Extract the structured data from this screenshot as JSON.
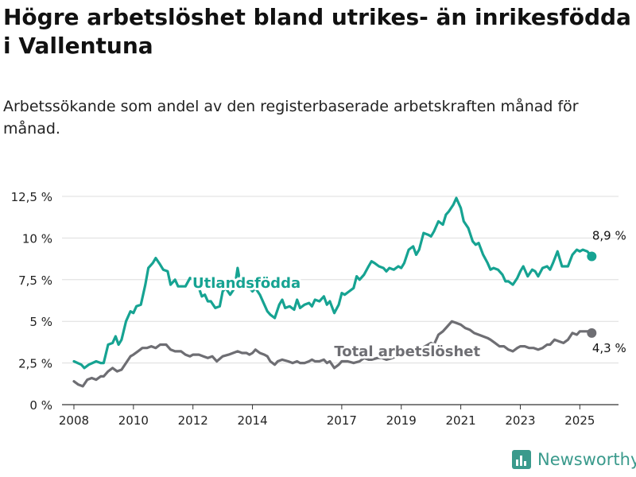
{
  "title": "Högre arbetslöshet bland utrikes- än inrikesfödda i Vallentuna",
  "subtitle": "Arbetssökande som andel av den registerbaserade arbetskraften månad för månad.",
  "brand": {
    "name": "Newsworthy",
    "icon": "bar-chart-logo-icon"
  },
  "chart_data": {
    "type": "line",
    "ylim": [
      0,
      12.5
    ],
    "xlim": [
      2007.6,
      2026.3
    ],
    "y_ticks": [
      {
        "value": 0,
        "label": "0 %"
      },
      {
        "value": 2.5,
        "label": "2,5 %"
      },
      {
        "value": 5,
        "label": "5 %"
      },
      {
        "value": 7.5,
        "label": "7,5 %"
      },
      {
        "value": 10,
        "label": "10 %"
      },
      {
        "value": 12.5,
        "label": "12,5 %"
      }
    ],
    "x_ticks": [
      {
        "value": 2008,
        "label": "2008"
      },
      {
        "value": 2010,
        "label": "2010"
      },
      {
        "value": 2012,
        "label": "2012"
      },
      {
        "value": 2014,
        "label": "2014"
      },
      {
        "value": 2017,
        "label": "2017"
      },
      {
        "value": 2019,
        "label": "2019"
      },
      {
        "value": 2021,
        "label": "2021"
      },
      {
        "value": 2023,
        "label": "2023"
      },
      {
        "value": 2025,
        "label": "2025"
      }
    ],
    "grid": "horizontal",
    "series": [
      {
        "name": "Utlandsfödda",
        "color": "#16a392",
        "end_label": "8,9 %",
        "last_value": 8.9,
        "points": [
          [
            2008.0,
            2.6
          ],
          [
            2008.25,
            2.4
          ],
          [
            2008.35,
            2.2
          ],
          [
            2008.5,
            2.4
          ],
          [
            2008.75,
            2.6
          ],
          [
            2008.9,
            2.5
          ],
          [
            2009.0,
            2.5
          ],
          [
            2009.15,
            3.6
          ],
          [
            2009.3,
            3.7
          ],
          [
            2009.4,
            4.1
          ],
          [
            2009.5,
            3.6
          ],
          [
            2009.6,
            3.9
          ],
          [
            2009.75,
            5.0
          ],
          [
            2009.9,
            5.6
          ],
          [
            2010.0,
            5.5
          ],
          [
            2010.1,
            5.9
          ],
          [
            2010.25,
            6.0
          ],
          [
            2010.4,
            7.2
          ],
          [
            2010.5,
            8.2
          ],
          [
            2010.65,
            8.5
          ],
          [
            2010.75,
            8.8
          ],
          [
            2010.9,
            8.4
          ],
          [
            2011.0,
            8.1
          ],
          [
            2011.15,
            8.0
          ],
          [
            2011.25,
            7.2
          ],
          [
            2011.4,
            7.5
          ],
          [
            2011.5,
            7.1
          ],
          [
            2011.75,
            7.1
          ],
          [
            2011.9,
            7.6
          ],
          [
            2012.0,
            7.5
          ],
          [
            2012.1,
            7.3
          ],
          [
            2012.2,
            7.0
          ],
          [
            2012.3,
            6.5
          ],
          [
            2012.4,
            6.6
          ],
          [
            2012.5,
            6.2
          ],
          [
            2012.6,
            6.2
          ],
          [
            2012.75,
            5.8
          ],
          [
            2012.9,
            5.9
          ],
          [
            2013.0,
            6.8
          ],
          [
            2013.1,
            7.0
          ],
          [
            2013.25,
            6.6
          ],
          [
            2013.4,
            7.0
          ],
          [
            2013.5,
            8.2
          ],
          [
            2013.6,
            7.2
          ],
          [
            2013.75,
            7.2
          ],
          [
            2013.9,
            7.0
          ],
          [
            2014.0,
            6.8
          ],
          [
            2014.1,
            7.0
          ],
          [
            2014.25,
            6.6
          ],
          [
            2014.4,
            6.0
          ],
          [
            2014.5,
            5.6
          ],
          [
            2014.6,
            5.4
          ],
          [
            2014.75,
            5.2
          ],
          [
            2014.9,
            6.0
          ],
          [
            2015.0,
            6.3
          ],
          [
            2015.1,
            5.8
          ],
          [
            2015.25,
            5.9
          ],
          [
            2015.4,
            5.7
          ],
          [
            2015.5,
            6.3
          ],
          [
            2015.6,
            5.8
          ],
          [
            2015.75,
            6.0
          ],
          [
            2015.9,
            6.1
          ],
          [
            2016.0,
            5.9
          ],
          [
            2016.1,
            6.3
          ],
          [
            2016.25,
            6.2
          ],
          [
            2016.4,
            6.5
          ],
          [
            2016.5,
            6.0
          ],
          [
            2016.6,
            6.2
          ],
          [
            2016.75,
            5.5
          ],
          [
            2016.9,
            6.0
          ],
          [
            2017.0,
            6.7
          ],
          [
            2017.1,
            6.6
          ],
          [
            2017.25,
            6.8
          ],
          [
            2017.4,
            7.0
          ],
          [
            2017.5,
            7.7
          ],
          [
            2017.6,
            7.5
          ],
          [
            2017.75,
            7.8
          ],
          [
            2017.9,
            8.3
          ],
          [
            2018.0,
            8.6
          ],
          [
            2018.1,
            8.5
          ],
          [
            2018.25,
            8.3
          ],
          [
            2018.4,
            8.2
          ],
          [
            2018.5,
            8.0
          ],
          [
            2018.6,
            8.2
          ],
          [
            2018.75,
            8.1
          ],
          [
            2018.9,
            8.3
          ],
          [
            2019.0,
            8.2
          ],
          [
            2019.1,
            8.5
          ],
          [
            2019.25,
            9.3
          ],
          [
            2019.4,
            9.5
          ],
          [
            2019.5,
            9.0
          ],
          [
            2019.6,
            9.3
          ],
          [
            2019.75,
            10.3
          ],
          [
            2019.9,
            10.2
          ],
          [
            2020.0,
            10.1
          ],
          [
            2020.1,
            10.4
          ],
          [
            2020.25,
            11.0
          ],
          [
            2020.4,
            10.8
          ],
          [
            2020.5,
            11.4
          ],
          [
            2020.6,
            11.6
          ],
          [
            2020.75,
            12.0
          ],
          [
            2020.85,
            12.4
          ],
          [
            2021.0,
            11.8
          ],
          [
            2021.1,
            11.0
          ],
          [
            2021.25,
            10.6
          ],
          [
            2021.4,
            9.8
          ],
          [
            2021.5,
            9.6
          ],
          [
            2021.6,
            9.7
          ],
          [
            2021.75,
            9.0
          ],
          [
            2021.9,
            8.5
          ],
          [
            2022.0,
            8.1
          ],
          [
            2022.1,
            8.2
          ],
          [
            2022.25,
            8.1
          ],
          [
            2022.4,
            7.8
          ],
          [
            2022.5,
            7.4
          ],
          [
            2022.6,
            7.4
          ],
          [
            2022.75,
            7.2
          ],
          [
            2022.9,
            7.6
          ],
          [
            2023.0,
            8.0
          ],
          [
            2023.1,
            8.3
          ],
          [
            2023.25,
            7.7
          ],
          [
            2023.4,
            8.1
          ],
          [
            2023.5,
            8.0
          ],
          [
            2023.6,
            7.7
          ],
          [
            2023.75,
            8.2
          ],
          [
            2023.9,
            8.3
          ],
          [
            2024.0,
            8.1
          ],
          [
            2024.1,
            8.5
          ],
          [
            2024.25,
            9.2
          ],
          [
            2024.4,
            8.3
          ],
          [
            2024.5,
            8.3
          ],
          [
            2024.6,
            8.3
          ],
          [
            2024.75,
            9.0
          ],
          [
            2024.9,
            9.3
          ],
          [
            2025.0,
            9.2
          ],
          [
            2025.1,
            9.3
          ],
          [
            2025.25,
            9.2
          ],
          [
            2025.4,
            8.9
          ]
        ]
      },
      {
        "name": "Total arbetslöshet",
        "color": "#6e6e73",
        "end_label": "4,3 %",
        "last_value": 4.3,
        "points": [
          [
            2008.0,
            1.4
          ],
          [
            2008.15,
            1.2
          ],
          [
            2008.3,
            1.1
          ],
          [
            2008.45,
            1.5
          ],
          [
            2008.6,
            1.6
          ],
          [
            2008.75,
            1.5
          ],
          [
            2008.9,
            1.7
          ],
          [
            2009.0,
            1.7
          ],
          [
            2009.15,
            2.0
          ],
          [
            2009.3,
            2.2
          ],
          [
            2009.45,
            2.0
          ],
          [
            2009.6,
            2.1
          ],
          [
            2009.75,
            2.5
          ],
          [
            2009.9,
            2.9
          ],
          [
            2010.0,
            3.0
          ],
          [
            2010.15,
            3.2
          ],
          [
            2010.3,
            3.4
          ],
          [
            2010.45,
            3.4
          ],
          [
            2010.6,
            3.5
          ],
          [
            2010.75,
            3.4
          ],
          [
            2010.9,
            3.6
          ],
          [
            2011.0,
            3.6
          ],
          [
            2011.1,
            3.6
          ],
          [
            2011.25,
            3.3
          ],
          [
            2011.4,
            3.2
          ],
          [
            2011.6,
            3.2
          ],
          [
            2011.75,
            3.0
          ],
          [
            2011.9,
            2.9
          ],
          [
            2012.0,
            3.0
          ],
          [
            2012.2,
            3.0
          ],
          [
            2012.35,
            2.9
          ],
          [
            2012.5,
            2.8
          ],
          [
            2012.65,
            2.9
          ],
          [
            2012.8,
            2.6
          ],
          [
            2013.0,
            2.9
          ],
          [
            2013.2,
            3.0
          ],
          [
            2013.35,
            3.1
          ],
          [
            2013.5,
            3.2
          ],
          [
            2013.65,
            3.1
          ],
          [
            2013.8,
            3.1
          ],
          [
            2013.9,
            3.0
          ],
          [
            2014.0,
            3.1
          ],
          [
            2014.1,
            3.3
          ],
          [
            2014.25,
            3.1
          ],
          [
            2014.4,
            3.0
          ],
          [
            2014.5,
            2.9
          ],
          [
            2014.6,
            2.6
          ],
          [
            2014.75,
            2.4
          ],
          [
            2014.85,
            2.6
          ],
          [
            2015.0,
            2.7
          ],
          [
            2015.2,
            2.6
          ],
          [
            2015.35,
            2.5
          ],
          [
            2015.5,
            2.6
          ],
          [
            2015.6,
            2.5
          ],
          [
            2015.75,
            2.5
          ],
          [
            2015.9,
            2.6
          ],
          [
            2016.0,
            2.7
          ],
          [
            2016.1,
            2.6
          ],
          [
            2016.25,
            2.6
          ],
          [
            2016.4,
            2.7
          ],
          [
            2016.5,
            2.5
          ],
          [
            2016.6,
            2.6
          ],
          [
            2016.75,
            2.2
          ],
          [
            2016.9,
            2.4
          ],
          [
            2017.0,
            2.6
          ],
          [
            2017.2,
            2.6
          ],
          [
            2017.4,
            2.5
          ],
          [
            2017.6,
            2.6
          ],
          [
            2017.75,
            2.8
          ],
          [
            2017.9,
            2.7
          ],
          [
            2018.0,
            2.7
          ],
          [
            2018.2,
            2.8
          ],
          [
            2018.35,
            2.8
          ],
          [
            2018.5,
            2.7
          ],
          [
            2018.7,
            2.8
          ],
          [
            2018.85,
            2.9
          ],
          [
            2019.0,
            2.9
          ],
          [
            2019.2,
            3.0
          ],
          [
            2019.4,
            3.2
          ],
          [
            2019.6,
            3.3
          ],
          [
            2019.8,
            3.5
          ],
          [
            2020.0,
            3.7
          ],
          [
            2020.1,
            3.6
          ],
          [
            2020.25,
            4.2
          ],
          [
            2020.4,
            4.4
          ],
          [
            2020.55,
            4.7
          ],
          [
            2020.7,
            5.0
          ],
          [
            2020.85,
            4.9
          ],
          [
            2021.0,
            4.8
          ],
          [
            2021.15,
            4.6
          ],
          [
            2021.3,
            4.5
          ],
          [
            2021.45,
            4.3
          ],
          [
            2021.6,
            4.2
          ],
          [
            2021.75,
            4.1
          ],
          [
            2021.9,
            4.0
          ],
          [
            2022.0,
            3.9
          ],
          [
            2022.15,
            3.7
          ],
          [
            2022.3,
            3.5
          ],
          [
            2022.45,
            3.5
          ],
          [
            2022.6,
            3.3
          ],
          [
            2022.75,
            3.2
          ],
          [
            2022.9,
            3.4
          ],
          [
            2023.0,
            3.5
          ],
          [
            2023.15,
            3.5
          ],
          [
            2023.3,
            3.4
          ],
          [
            2023.45,
            3.4
          ],
          [
            2023.6,
            3.3
          ],
          [
            2023.75,
            3.4
          ],
          [
            2023.9,
            3.6
          ],
          [
            2024.0,
            3.6
          ],
          [
            2024.15,
            3.9
          ],
          [
            2024.3,
            3.8
          ],
          [
            2024.45,
            3.7
          ],
          [
            2024.6,
            3.9
          ],
          [
            2024.75,
            4.3
          ],
          [
            2024.9,
            4.2
          ],
          [
            2025.0,
            4.4
          ],
          [
            2025.15,
            4.4
          ],
          [
            2025.3,
            4.4
          ],
          [
            2025.4,
            4.3
          ]
        ]
      }
    ],
    "annotations": [
      {
        "series": 0,
        "text": "Utlandsfödda",
        "x": 2013.8,
        "y": 7.3
      },
      {
        "series": 1,
        "text": "Total arbetslöshet",
        "x": 2019.2,
        "y": 3.2
      }
    ]
  }
}
